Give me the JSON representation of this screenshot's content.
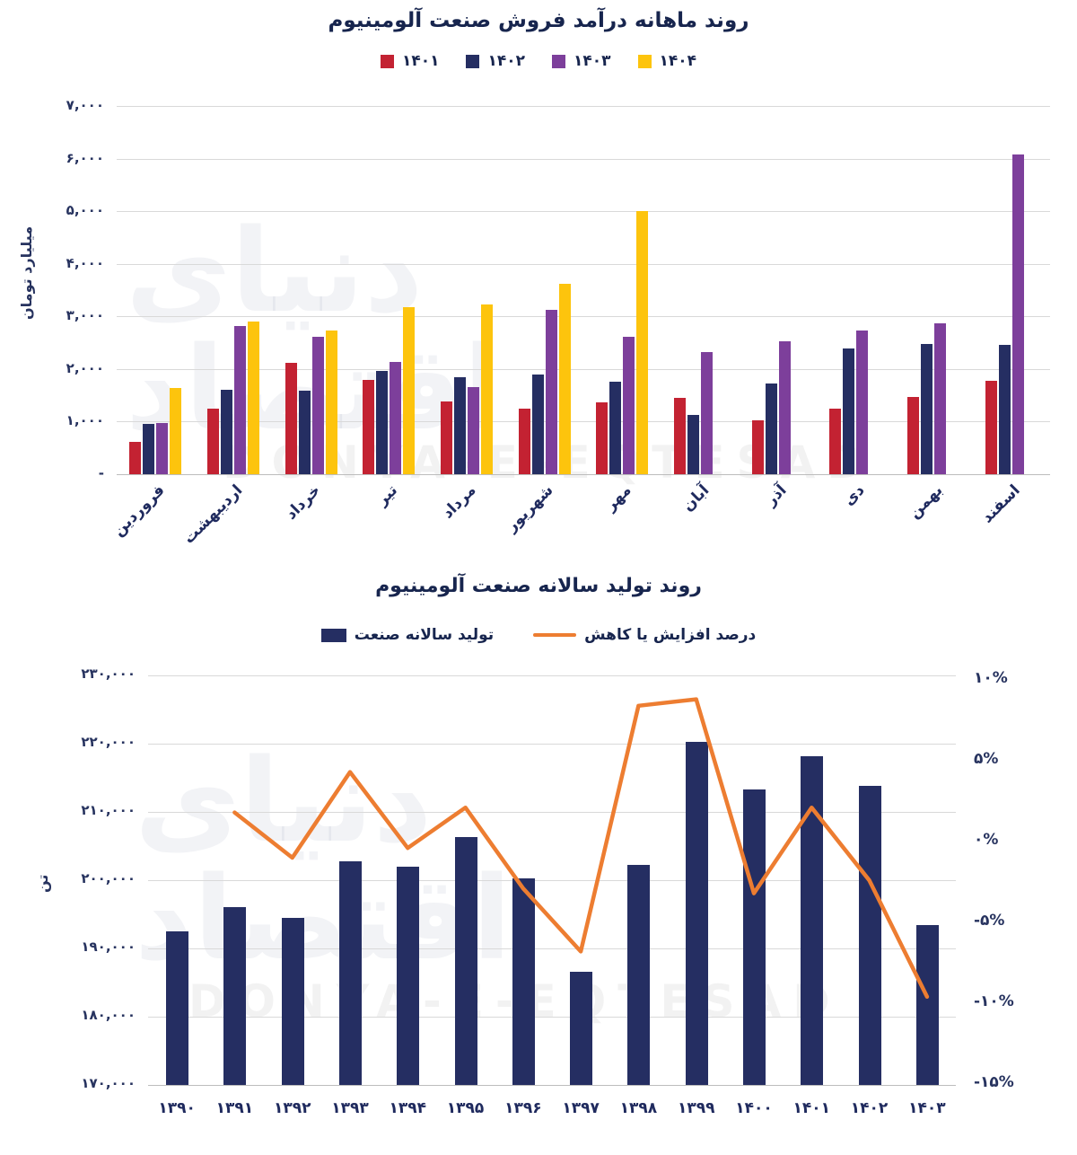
{
  "watermark": {
    "latin": "DONYA-E-EQTESAD",
    "persian": "دنیای اقتصاد"
  },
  "colors": {
    "red": "#c32232",
    "navy": "#252e62",
    "purple": "#7d3f9b",
    "yellow": "#fdc40d",
    "orange": "#ed7d31",
    "grid": "#d9d9d9",
    "text": "#17254e"
  },
  "chart_data": [
    {
      "type": "bar",
      "title": "روند ماهانه درآمد فروش صنعت آلومینیوم",
      "ylabel": "میلیارد تومان",
      "ylim": [
        0,
        7000
      ],
      "grid": true,
      "legend_position": "top",
      "ytick_values": [
        0,
        1000,
        2000,
        3000,
        4000,
        5000,
        6000,
        7000
      ],
      "ytick_labels": [
        "-",
        "۱,۰۰۰",
        "۲,۰۰۰",
        "۳,۰۰۰",
        "۴,۰۰۰",
        "۵,۰۰۰",
        "۶,۰۰۰",
        "۷,۰۰۰"
      ],
      "categories": [
        "فروردین",
        "اردیبهشت",
        "خرداد",
        "تیر",
        "مرداد",
        "شهریور",
        "مهر",
        "آبان",
        "آذر",
        "دی",
        "بهمن",
        "اسفند"
      ],
      "series": [
        {
          "name": "۱۴۰۱",
          "color": "red",
          "values": [
            620,
            1250,
            2120,
            1790,
            1380,
            1250,
            1370,
            1450,
            1020,
            1250,
            1470,
            1780
          ]
        },
        {
          "name": "۱۴۰۲",
          "color": "navy",
          "values": [
            960,
            1600,
            1590,
            1960,
            1840,
            1900,
            1760,
            1130,
            1720,
            2390,
            2480,
            2460
          ]
        },
        {
          "name": "۱۴۰۳",
          "color": "purple",
          "values": [
            980,
            2820,
            2610,
            2130,
            1660,
            3120,
            2610,
            2320,
            2530,
            2730,
            2870,
            6080
          ]
        },
        {
          "name": "۱۴۰۴",
          "color": "yellow",
          "values": [
            1640,
            2900,
            2730,
            3180,
            3230,
            3620,
            5000,
            null,
            null,
            null,
            null,
            null
          ]
        }
      ]
    },
    {
      "type": "bar+line",
      "title": "روند تولید سالانه صنعت آلومینیوم",
      "ylabel_left": "تن",
      "ylim_left": [
        170000,
        230000
      ],
      "ylim_right": [
        -15,
        10
      ],
      "grid": true,
      "legend_position": "top",
      "ytick_values_left": [
        170000,
        180000,
        190000,
        200000,
        210000,
        220000,
        230000
      ],
      "ytick_labels_left": [
        "۱۷۰,۰۰۰",
        "۱۸۰,۰۰۰",
        "۱۹۰,۰۰۰",
        "۲۰۰,۰۰۰",
        "۲۱۰,۰۰۰",
        "۲۲۰,۰۰۰",
        "۲۳۰,۰۰۰"
      ],
      "ytick_values_right": [
        10,
        5,
        0,
        -5,
        -10,
        -15
      ],
      "ytick_labels_right": [
        "۱۰%",
        "۵%",
        "۰%",
        "-۵%",
        "-۱۰%",
        "-۱۵%"
      ],
      "categories": [
        "۱۳۹۰",
        "۱۳۹۱",
        "۱۳۹۲",
        "۱۳۹۳",
        "۱۳۹۴",
        "۱۳۹۵",
        "۱۳۹۶",
        "۱۳۹۷",
        "۱۳۹۸",
        "۱۳۹۹",
        "۱۴۰۰",
        "۱۴۰۱",
        "۱۴۰۲",
        "۱۴۰۳"
      ],
      "series": [
        {
          "name": "تولید سالانه صنعت",
          "type": "bar",
          "axis": "left",
          "color": "navy",
          "values": [
            192500,
            196000,
            194500,
            202800,
            202000,
            206300,
            200300,
            186600,
            202200,
            220300,
            213300,
            218200,
            213800,
            193400
          ]
        },
        {
          "name": "درصد افزایش یا کاهش",
          "type": "line",
          "axis": "right",
          "color": "orange",
          "values": [
            null,
            1.8,
            -1.0,
            4.3,
            -0.4,
            2.1,
            -2.9,
            -6.8,
            8.4,
            8.8,
            -3.2,
            2.1,
            -2.4,
            -9.6
          ]
        }
      ]
    }
  ]
}
